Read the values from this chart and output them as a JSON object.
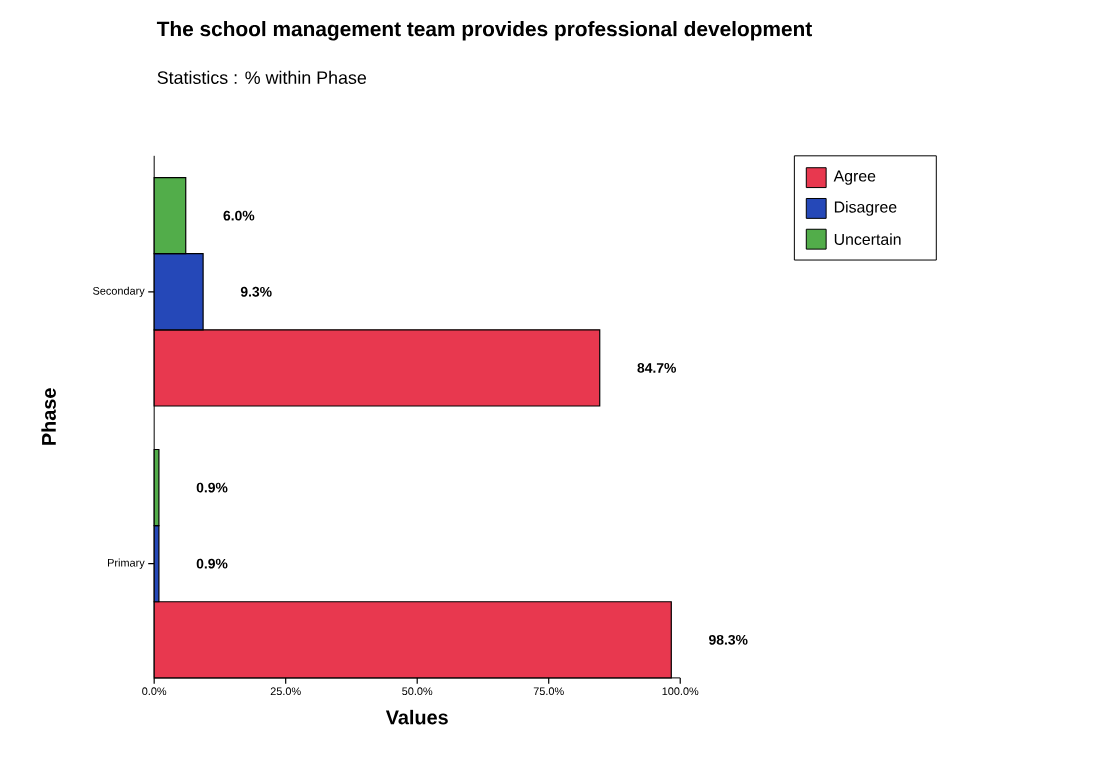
{
  "chart_data": {
    "type": "bar",
    "orientation": "horizontal",
    "title": "The school management team provides professional development",
    "subtitle": "Statistics : % within Phase",
    "xlabel": "Values",
    "ylabel": "Phase",
    "categories": [
      "Secondary",
      "Primary"
    ],
    "series": [
      {
        "name": "Agree",
        "color": "#e8384f",
        "values": [
          84.7,
          98.3
        ],
        "value_labels": [
          "84.7%",
          "98.3%"
        ]
      },
      {
        "name": "Disagree",
        "color": "#2548b8",
        "values": [
          9.3,
          0.9
        ],
        "value_labels": [
          "9.3%",
          "0.9%"
        ]
      },
      {
        "name": "Uncertain",
        "color": "#52ad4a",
        "values": [
          6.0,
          0.9
        ],
        "value_labels": [
          "6.0%",
          "0.9%"
        ]
      }
    ],
    "xlim": [
      0,
      100
    ],
    "xticks": [
      {
        "value": 0,
        "label": "0.0%"
      },
      {
        "value": 25,
        "label": "25.0%"
      },
      {
        "value": 50,
        "label": "50.0%"
      },
      {
        "value": 75,
        "label": "75.0%"
      },
      {
        "value": 100,
        "label": "100.0%"
      }
    ],
    "grid": false,
    "legend": "top right"
  }
}
